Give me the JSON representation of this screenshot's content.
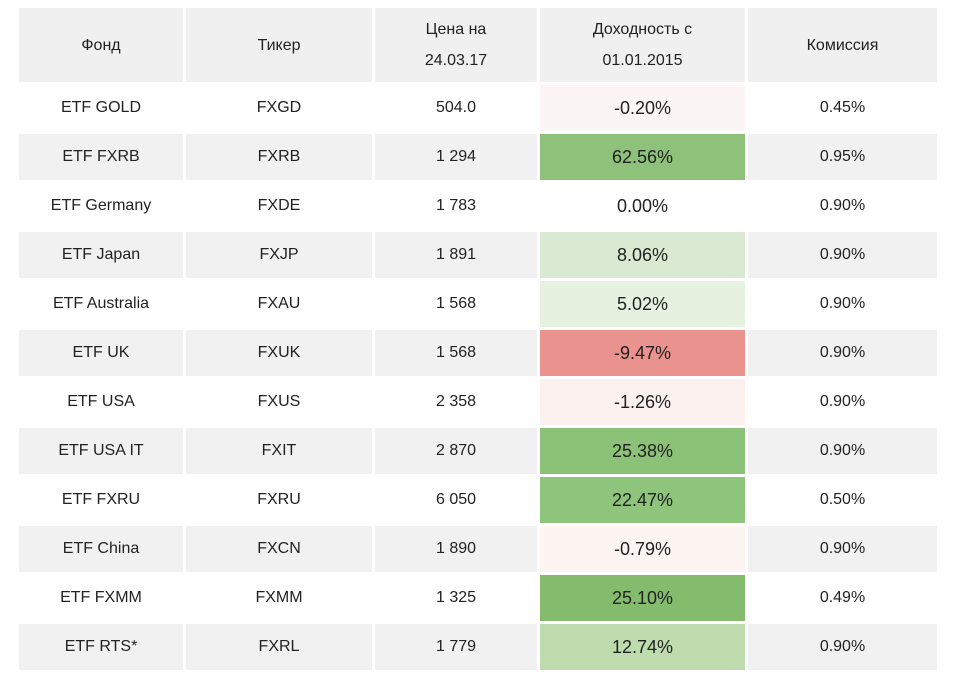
{
  "table": {
    "headers": {
      "fund": "Фонд",
      "ticker": "Тикер",
      "price_line1": "Цена на",
      "price_line2": "24.03.17",
      "return_line1": "Доходность с",
      "return_line2": "01.01.2015",
      "fee": "Комиссия"
    },
    "rows": [
      {
        "fund": "ETF GOLD",
        "ticker": "FXGD",
        "price": "504.0",
        "return": "-0.20%",
        "return_bg": "#fbf6f5",
        "fee": "0.45%"
      },
      {
        "fund": "ETF FXRB",
        "ticker": "FXRB",
        "price": "1 294",
        "return": "62.56%",
        "return_bg": "#8ec17a",
        "fee": "0.95%"
      },
      {
        "fund": "ETF Germany",
        "ticker": "FXDE",
        "price": "1 783",
        "return": "0.00%",
        "return_bg": "#ffffff",
        "fee": "0.90%"
      },
      {
        "fund": "ETF Japan",
        "ticker": "FXJP",
        "price": "1 891",
        "return": "8.06%",
        "return_bg": "#d9e9d2",
        "fee": "0.90%"
      },
      {
        "fund": "ETF Australia",
        "ticker": "FXAU",
        "price": "1 568",
        "return": "5.02%",
        "return_bg": "#e6f1e0",
        "fee": "0.90%"
      },
      {
        "fund": "ETF UK",
        "ticker": "FXUK",
        "price": "1 568",
        "return": "-9.47%",
        "return_bg": "#e9928e",
        "fee": "0.90%"
      },
      {
        "fund": "ETF USA",
        "ticker": "FXUS",
        "price": "2 358",
        "return": "-1.26%",
        "return_bg": "#fdf1ef",
        "fee": "0.90%"
      },
      {
        "fund": "ETF USA IT",
        "ticker": "FXIT",
        "price": "2 870",
        "return": "25.38%",
        "return_bg": "#8cc278",
        "fee": "0.90%"
      },
      {
        "fund": "ETF FXRU",
        "ticker": "FXRU",
        "price": "6 050",
        "return": "22.47%",
        "return_bg": "#8ec47b",
        "fee": "0.50%"
      },
      {
        "fund": "ETF China",
        "ticker": "FXCN",
        "price": "1 890",
        "return": "-0.79%",
        "return_bg": "#fdf5f2",
        "fee": "0.90%"
      },
      {
        "fund": "ETF FXMM",
        "ticker": "FXMM",
        "price": "1 325",
        "return": "25.10%",
        "return_bg": "#84bb6d",
        "fee": "0.49%"
      },
      {
        "fund": "ETF RTS*",
        "ticker": "FXRL",
        "price": "1 779",
        "return": "12.74%",
        "return_bg": "#bedcae",
        "fee": "0.90%"
      }
    ]
  },
  "colors": {
    "header_bg": "#f0f0f0",
    "stripe_bg": "#f1f1f1",
    "text": "#222222",
    "positive_strong": "#8ec17a",
    "negative_strong": "#e9928e"
  },
  "chart_data": {
    "type": "table",
    "title": "",
    "columns": [
      "Фонд",
      "Тикер",
      "Цена на 24.03.17",
      "Доходность с 01.01.2015",
      "Комиссия"
    ],
    "rows": [
      [
        "ETF GOLD",
        "FXGD",
        504.0,
        "-0.20%",
        "0.45%"
      ],
      [
        "ETF FXRB",
        "FXRB",
        1294,
        "62.56%",
        "0.95%"
      ],
      [
        "ETF Germany",
        "FXDE",
        1783,
        "0.00%",
        "0.90%"
      ],
      [
        "ETF Japan",
        "FXJP",
        1891,
        "8.06%",
        "0.90%"
      ],
      [
        "ETF Australia",
        "FXAU",
        1568,
        "5.02%",
        "0.90%"
      ],
      [
        "ETF UK",
        "FXUK",
        1568,
        "-9.47%",
        "0.90%"
      ],
      [
        "ETF USA",
        "FXUS",
        2358,
        "-1.26%",
        "0.90%"
      ],
      [
        "ETF USA IT",
        "FXIT",
        2870,
        "25.38%",
        "0.90%"
      ],
      [
        "ETF FXRU",
        "FXRU",
        6050,
        "22.47%",
        "0.50%"
      ],
      [
        "ETF China",
        "FXCN",
        1890,
        "-0.79%",
        "0.90%"
      ],
      [
        "ETF FXMM",
        "FXMM",
        1325,
        "25.10%",
        "0.49%"
      ],
      [
        "ETF RTS*",
        "FXRL",
        1779,
        "12.74%",
        "0.90%"
      ]
    ],
    "layout_hints": {
      "return_column_conditional_coloring": "red-white-green scale by value",
      "row_striping": "alternating white / light grey",
      "alignment": "all cells centered"
    }
  }
}
